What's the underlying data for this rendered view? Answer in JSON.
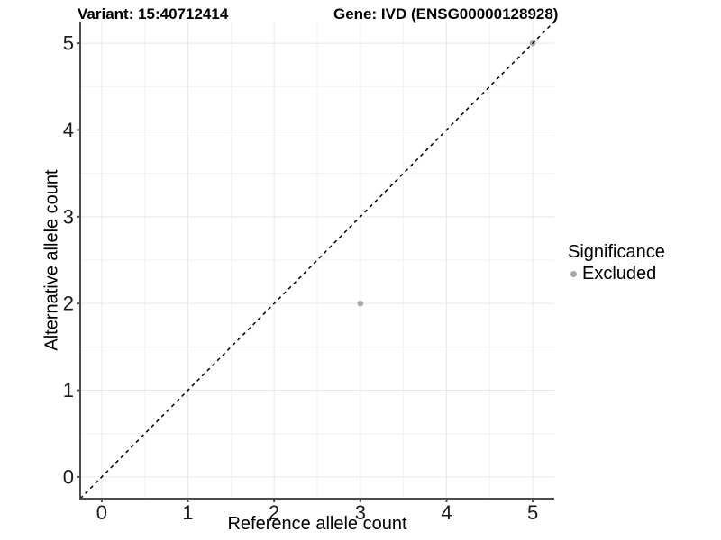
{
  "header": {
    "variant_title": "Variant: 15:40712414",
    "gene_title": "Gene: IVD (ENSG00000128928)"
  },
  "legend": {
    "title": "Significance",
    "items": [
      {
        "label": "Excluded",
        "color": "#a9a9a9"
      }
    ]
  },
  "chart_data": {
    "type": "scatter",
    "title": "Variant: 15:40712414 / Gene: IVD (ENSG00000128928)",
    "xlabel": "Reference allele count",
    "ylabel": "Alternative allele count",
    "xlim": [
      -0.25,
      5.25
    ],
    "ylim": [
      -0.25,
      5.25
    ],
    "x_ticks": [
      0,
      1,
      2,
      3,
      4,
      5
    ],
    "y_ticks": [
      0,
      1,
      2,
      3,
      4,
      5
    ],
    "minor_ticks": [
      0.5,
      1.5,
      2.5,
      3.5,
      4.5
    ],
    "grid": true,
    "legend_position": "right",
    "series": [
      {
        "name": "Excluded",
        "color": "#a9a9a9",
        "points": [
          {
            "x": 3,
            "y": 2
          },
          {
            "x": 5,
            "y": 5
          }
        ]
      }
    ],
    "reference_line": {
      "type": "identity y=x",
      "style": "dashed",
      "color": "#000000"
    }
  },
  "style": {
    "background": "#ffffff",
    "grid_major_color": "#e8e8e8",
    "grid_minor_color": "#f2f2f2",
    "axis_color": "#4d4d4d",
    "tick_label_color": "#1a1a1a",
    "point_color": "#a9a9a9"
  }
}
